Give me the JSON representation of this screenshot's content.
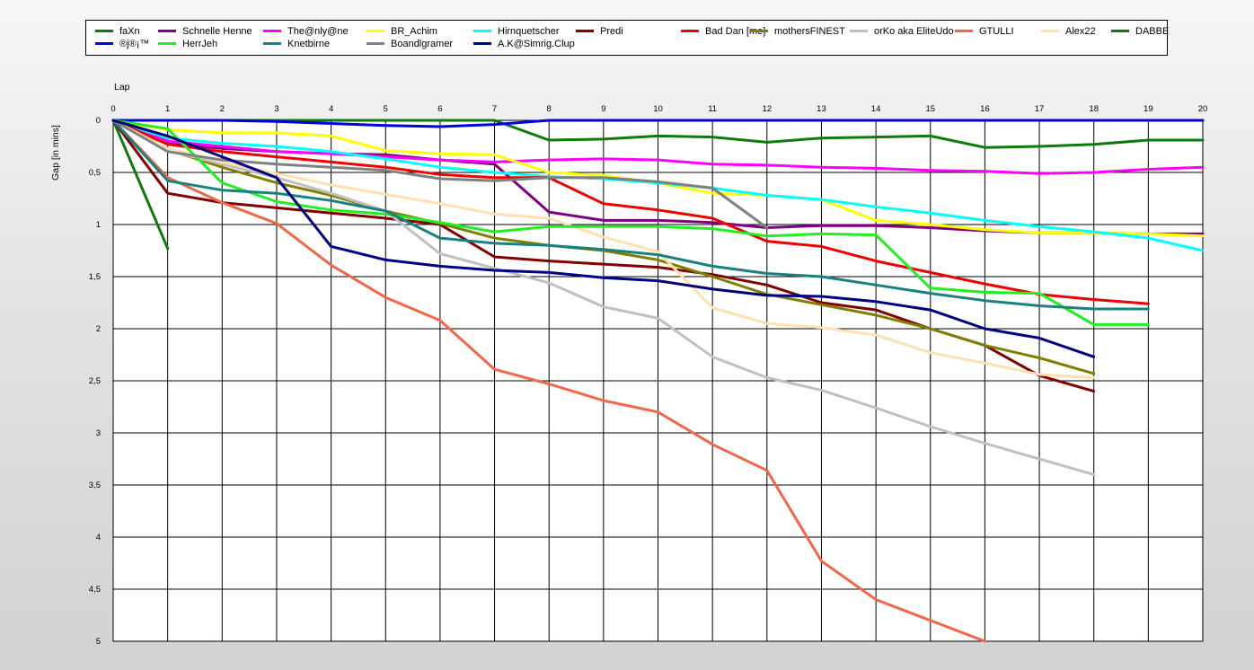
{
  "chart_data": {
    "type": "line",
    "xlabel": "Lap",
    "ylabel": "Gap [in mins]",
    "xlim": [
      0,
      20
    ],
    "ylim": [
      0,
      5
    ],
    "y_inverted": true,
    "grid": true,
    "legend_position": "top",
    "x_ticks": [
      "0",
      "1",
      "2",
      "3",
      "4",
      "5",
      "6",
      "7",
      "8",
      "9",
      "10",
      "11",
      "12",
      "13",
      "14",
      "15",
      "16",
      "17",
      "18",
      "19",
      "20"
    ],
    "y_ticks": [
      "0",
      "0,5",
      "1",
      "1,5",
      "2",
      "2,5",
      "3",
      "3,5",
      "4",
      "4,5",
      "5"
    ],
    "series": [
      {
        "name": "faXn",
        "color": "#0d7a0d",
        "x": [
          0,
          1
        ],
        "y": [
          0,
          1.23
        ]
      },
      {
        "name": "Schnelle Henne",
        "color": "#800080",
        "x": [
          0,
          1,
          2,
          3,
          4,
          5,
          6,
          7,
          8,
          9,
          10,
          11,
          12,
          13,
          14,
          15,
          16,
          17,
          18,
          19,
          20
        ],
        "y": [
          0,
          0.22,
          0.27,
          0.3,
          0.32,
          0.33,
          0.38,
          0.42,
          0.88,
          0.96,
          0.96,
          0.98,
          1.03,
          1.01,
          1.01,
          1.03,
          1.06,
          1.08,
          1.08,
          1.09,
          1.09
        ]
      },
      {
        "name": "The@nly@ne",
        "color": "#ff00ff",
        "x": [
          0,
          1,
          2,
          3,
          4,
          5,
          6,
          7,
          8,
          9,
          10,
          11,
          12,
          13,
          14,
          15,
          16,
          17,
          18,
          19,
          20
        ],
        "y": [
          0,
          0.2,
          0.25,
          0.3,
          0.32,
          0.35,
          0.38,
          0.4,
          0.38,
          0.37,
          0.38,
          0.42,
          0.43,
          0.45,
          0.46,
          0.48,
          0.49,
          0.51,
          0.5,
          0.47,
          0.45
        ]
      },
      {
        "name": "BR_Achim",
        "color": "#ffff00",
        "x": [
          0,
          1,
          2,
          3,
          4,
          5,
          6,
          7,
          8,
          9,
          10,
          11,
          12,
          13,
          14,
          15,
          16,
          17,
          18,
          19,
          20
        ],
        "y": [
          0,
          0.09,
          0.12,
          0.12,
          0.15,
          0.29,
          0.32,
          0.33,
          0.5,
          0.53,
          0.6,
          0.7,
          0.72,
          0.76,
          0.96,
          1.0,
          1.05,
          1.08,
          1.08,
          1.09,
          1.11
        ]
      },
      {
        "name": "Hirnquetscher",
        "color": "#00ffff",
        "x": [
          0,
          1,
          2,
          3,
          4,
          5,
          6,
          7,
          8,
          9,
          10,
          11,
          12,
          13,
          14,
          15,
          16,
          17,
          18,
          19,
          20
        ],
        "y": [
          0,
          0.17,
          0.22,
          0.25,
          0.3,
          0.37,
          0.45,
          0.5,
          0.54,
          0.56,
          0.6,
          0.65,
          0.72,
          0.76,
          0.83,
          0.89,
          0.96,
          1.02,
          1.07,
          1.13,
          1.25
        ]
      },
      {
        "name": "Predi",
        "color": "#800000",
        "x": [
          0,
          1,
          2,
          3,
          4,
          5,
          6,
          7,
          8,
          9,
          10,
          11,
          12,
          13,
          14,
          15,
          16,
          17,
          18
        ],
        "y": [
          0,
          0.7,
          0.79,
          0.84,
          0.89,
          0.94,
          1.0,
          1.31,
          1.35,
          1.38,
          1.41,
          1.48,
          1.58,
          1.75,
          1.82,
          2.0,
          2.16,
          2.45,
          2.6
        ]
      },
      {
        "name": "Bad Dan [me]",
        "color": "#ee0000",
        "x": [
          0,
          1,
          2,
          3,
          4,
          5,
          6,
          7,
          8,
          9,
          10,
          11,
          12,
          13,
          14,
          15,
          16,
          17,
          18,
          19
        ],
        "y": [
          0,
          0.23,
          0.3,
          0.35,
          0.4,
          0.45,
          0.52,
          0.55,
          0.55,
          0.8,
          0.86,
          0.94,
          1.16,
          1.21,
          1.35,
          1.46,
          1.57,
          1.67,
          1.72,
          1.76
        ]
      },
      {
        "name": "mothersFINEST",
        "color": "#808000",
        "x": [
          0,
          1,
          2,
          3,
          4,
          5,
          6,
          7,
          8,
          9,
          10,
          11,
          12,
          13,
          14,
          15,
          16,
          17,
          18
        ],
        "y": [
          0,
          0.28,
          0.45,
          0.6,
          0.72,
          0.87,
          0.99,
          1.13,
          1.2,
          1.25,
          1.34,
          1.5,
          1.67,
          1.77,
          1.87,
          2.0,
          2.16,
          2.28,
          2.43
        ]
      },
      {
        "name": "orKo aka EliteUdo",
        "color": "#c0c0c0",
        "x": [
          0,
          1,
          2,
          3,
          4,
          5,
          6,
          7,
          8,
          9,
          10,
          11,
          12,
          13,
          14,
          15,
          16,
          17,
          18
        ],
        "y": [
          0,
          0.29,
          0.42,
          0.55,
          0.7,
          0.87,
          1.28,
          1.42,
          1.56,
          1.79,
          1.9,
          2.27,
          2.47,
          2.59,
          2.76,
          2.94,
          3.1,
          3.25,
          3.4
        ]
      },
      {
        "name": "GTULLI",
        "color": "#f26649",
        "x": [
          0,
          1,
          2,
          3,
          4,
          5,
          6,
          7,
          8,
          9,
          10,
          11,
          12,
          13,
          14,
          15,
          16
        ],
        "y": [
          0,
          0.55,
          0.79,
          0.99,
          1.39,
          1.7,
          1.92,
          2.39,
          2.53,
          2.69,
          2.8,
          3.11,
          3.36,
          4.23,
          4.6,
          4.8,
          5.0
        ]
      },
      {
        "name": "Alex22",
        "color": "#ffe0b0",
        "x": [
          0,
          1,
          2,
          3,
          4,
          5,
          6,
          7,
          8,
          9,
          10,
          11,
          12,
          13,
          14,
          15,
          16,
          17,
          18
        ],
        "y": [
          0,
          0.27,
          0.4,
          0.51,
          0.62,
          0.71,
          0.8,
          0.9,
          0.94,
          1.12,
          1.26,
          1.8,
          1.95,
          1.99,
          2.06,
          2.23,
          2.33,
          2.44,
          2.47
        ]
      },
      {
        "name": "DABBE",
        "color": "#0d7a0d",
        "x": [
          0,
          1,
          2,
          3,
          4,
          5,
          6,
          7,
          8,
          9,
          10,
          11,
          12,
          13,
          14,
          15,
          16,
          17,
          18,
          19,
          20
        ],
        "y": [
          0,
          0,
          0,
          0,
          0,
          0,
          0,
          0,
          0.19,
          0.18,
          0.15,
          0.16,
          0.21,
          0.17,
          0.16,
          0.15,
          0.26,
          0.25,
          0.23,
          0.19,
          0.19
        ]
      },
      {
        "name": "®j®¡™",
        "color": "#0000dd",
        "x": [
          0,
          1,
          2,
          3,
          4,
          5,
          6,
          7,
          8,
          9,
          10,
          11,
          12,
          13,
          14,
          15,
          16,
          17,
          18,
          19,
          20
        ],
        "y": [
          0,
          0,
          0,
          0.01,
          0.03,
          0.05,
          0.06,
          0.04,
          0,
          0,
          0,
          0,
          0,
          0,
          0,
          0,
          0,
          0,
          0,
          0,
          0
        ]
      },
      {
        "name": "HerrJeh",
        "color": "#22ee22",
        "x": [
          0,
          1,
          2,
          3,
          4,
          5,
          6,
          7,
          8,
          9,
          10,
          11,
          12,
          13,
          14,
          15,
          16,
          17,
          18,
          19
        ],
        "y": [
          0,
          0.08,
          0.6,
          0.78,
          0.86,
          0.9,
          0.98,
          1.07,
          1.02,
          1.02,
          1.02,
          1.04,
          1.11,
          1.09,
          1.1,
          1.61,
          1.65,
          1.66,
          1.96,
          1.96
        ]
      },
      {
        "name": "Knetbirne",
        "color": "#1a8080",
        "x": [
          0,
          1,
          2,
          3,
          4,
          5,
          6,
          7,
          8,
          9,
          10,
          11,
          12,
          13,
          14,
          15,
          16,
          17,
          18,
          19
        ],
        "y": [
          0,
          0.58,
          0.67,
          0.7,
          0.77,
          0.87,
          1.13,
          1.18,
          1.2,
          1.24,
          1.29,
          1.4,
          1.47,
          1.5,
          1.58,
          1.66,
          1.73,
          1.78,
          1.81,
          1.81
        ]
      },
      {
        "name": "Boandlgramer",
        "color": "#808080",
        "x": [
          0,
          1,
          2,
          3,
          4,
          5,
          6,
          7,
          8,
          9,
          10,
          11,
          12
        ],
        "y": [
          0,
          0.3,
          0.38,
          0.42,
          0.45,
          0.48,
          0.56,
          0.58,
          0.55,
          0.55,
          0.59,
          0.65,
          1.03
        ]
      },
      {
        "name": "A.K@Simrig.Clup",
        "color": "#000080",
        "x": [
          0,
          1,
          2,
          3,
          4,
          5,
          6,
          7,
          8,
          9,
          10,
          11,
          12,
          13,
          14,
          15,
          16,
          17,
          18
        ],
        "y": [
          0,
          0.15,
          0.35,
          0.55,
          1.21,
          1.34,
          1.4,
          1.44,
          1.46,
          1.51,
          1.54,
          1.62,
          1.68,
          1.69,
          1.74,
          1.82,
          2.0,
          2.09,
          2.27
        ]
      }
    ]
  }
}
